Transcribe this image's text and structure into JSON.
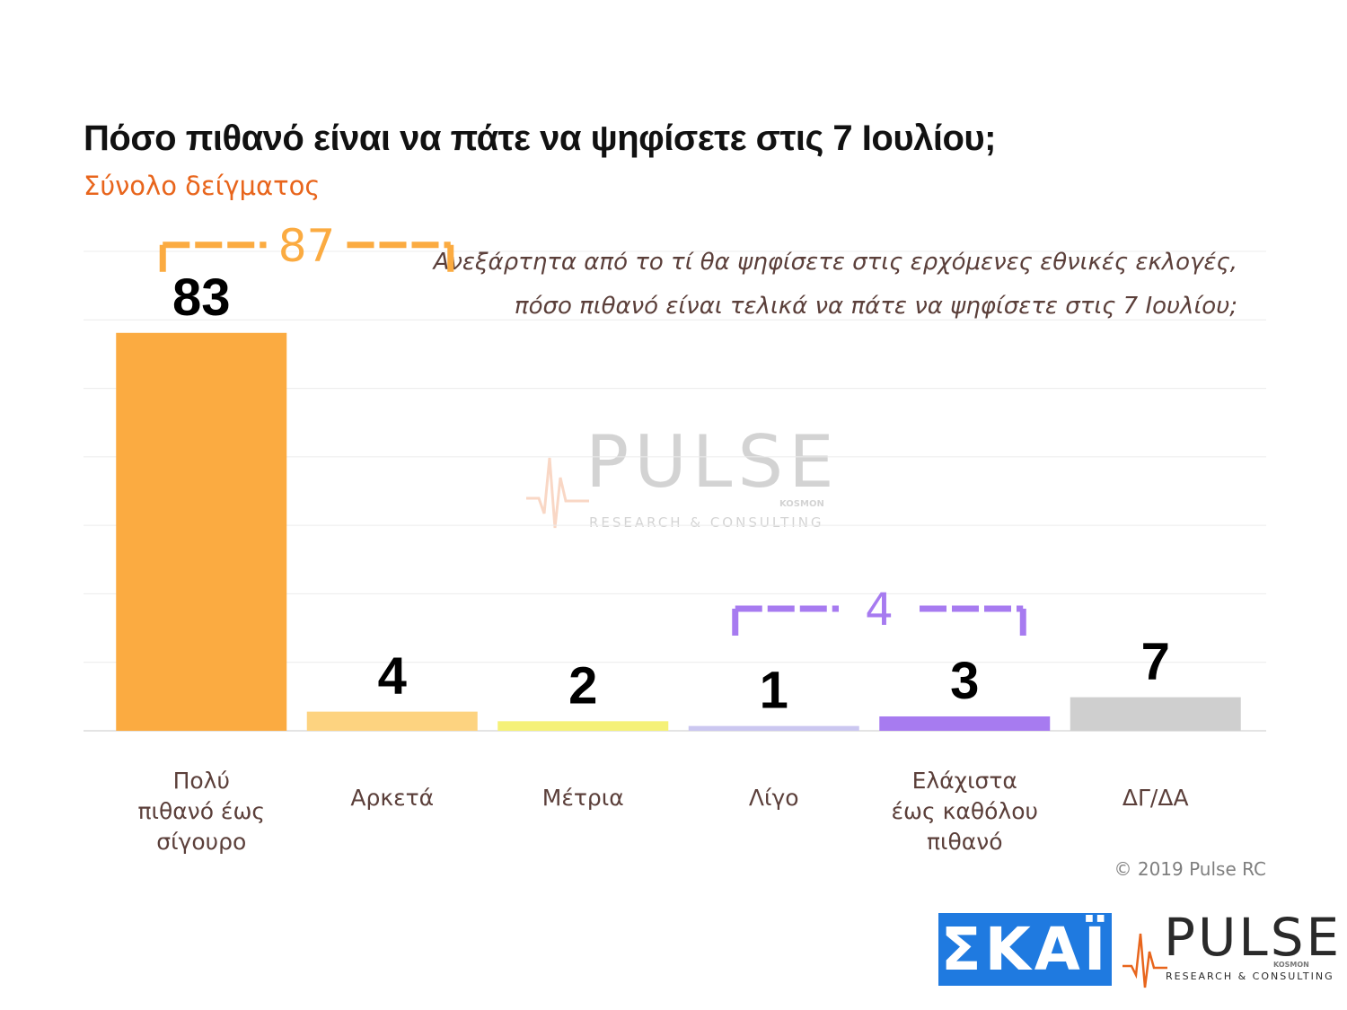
{
  "chart_data": {
    "type": "bar",
    "title": "Πόσο πιθανό είναι να πάτε να ψηφίσετε στις 7 Ιουλίου;",
    "subtitle": "Σύνολο δείγματος",
    "question": [
      "Ανεξάρτητα από το τί θα ψηφίσετε στις ερχόμενες εθνικές εκλογές,",
      "πόσο πιθανό είναι τελικά να πάτε να ψηφίσετε στις 7 Ιουλίου;"
    ],
    "categories": [
      [
        "Πολύ",
        "πιθανό έως",
        "σίγουρο"
      ],
      [
        "Αρκετά"
      ],
      [
        "Μέτρια"
      ],
      [
        "Λίγο"
      ],
      [
        "Ελάχιστα",
        "έως καθόλου",
        "πιθανό"
      ],
      [
        "ΔΓ/ΔΑ"
      ]
    ],
    "values": [
      83,
      4,
      2,
      1,
      3,
      7
    ],
    "bar_colors": [
      "#fbab41",
      "#fdd380",
      "#f5f178",
      "#cbc7f0",
      "#a77bf0",
      "#cfcfcf"
    ],
    "ylim": [
      0,
      100
    ],
    "grid": true,
    "groups": [
      {
        "label": "87",
        "from": 0,
        "to": 1,
        "color": "#fbab41"
      },
      {
        "label": "4",
        "from": 3,
        "to": 4,
        "color": "#a77bf0"
      }
    ]
  },
  "copyright": "© 2019 Pulse RC",
  "logos": {
    "skai": "ΣΚΑΪ",
    "pulse_name": "PULSE",
    "pulse_tagline": "RESEARCH & CONSULTING",
    "pulse_partner": "KOSMON"
  },
  "colors": {
    "title": "#111111",
    "subtitle": "#e8651c",
    "question": "#5b3f3a",
    "category_label": "#5b3f3a",
    "value_label": "#000000",
    "skai_blue": "#1f7ae0",
    "gridline": "#ececec"
  }
}
